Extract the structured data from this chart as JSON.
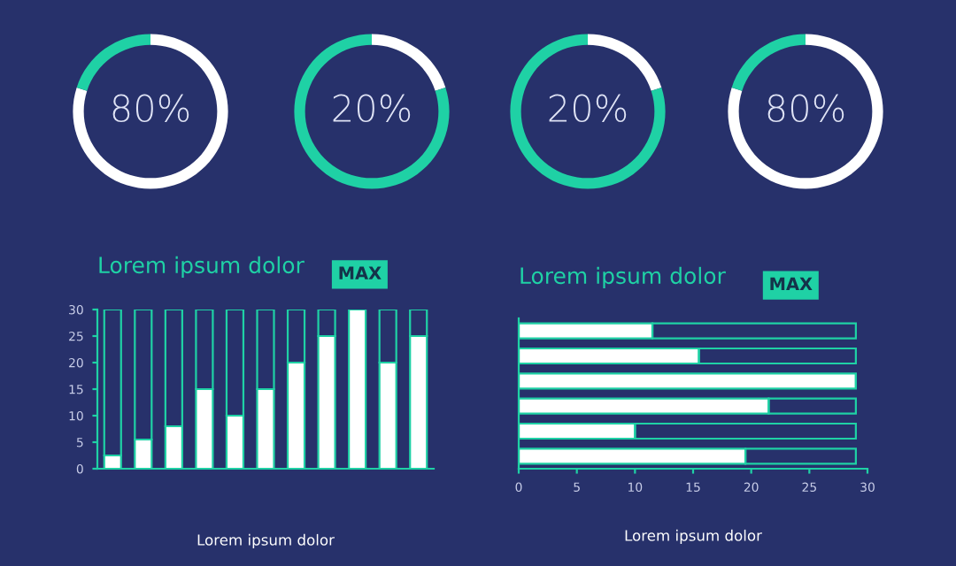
{
  "chart_data": [
    {
      "type": "donut",
      "categories": [
        null,
        null
      ],
      "values": [
        80,
        20
      ],
      "colors": [
        "#ffffff",
        "#1fd1a5"
      ],
      "annotations": [
        "80%"
      ]
    },
    {
      "type": "donut",
      "categories": [
        null,
        null
      ],
      "values": [
        20,
        80
      ],
      "colors": [
        "#ffffff",
        "#1fd1a5"
      ],
      "annotations": [
        "20%"
      ]
    },
    {
      "type": "donut",
      "categories": [
        null,
        null
      ],
      "values": [
        20,
        80
      ],
      "colors": [
        "#ffffff",
        "#1fd1a5"
      ],
      "annotations": [
        "20%"
      ]
    },
    {
      "type": "donut",
      "categories": [
        null,
        null
      ],
      "values": [
        80,
        20
      ],
      "colors": [
        "#ffffff",
        "#1fd1a5"
      ],
      "annotations": [
        "80%"
      ]
    },
    {
      "type": "bar",
      "title": "Lorem ipsum dolor",
      "categories": [
        null,
        null,
        null,
        null,
        null,
        null,
        null,
        null,
        null,
        null,
        null
      ],
      "stacked": true,
      "series": [
        {
          "color": "#ffffff",
          "values": [
            2.5,
            5.5,
            8,
            15,
            10,
            15,
            20,
            25,
            30,
            20,
            25
          ]
        },
        {
          "color": "#1fd1a5",
          "values": [
            27.5,
            24.5,
            22,
            15,
            20,
            15,
            10,
            5,
            0,
            10,
            5
          ]
        }
      ],
      "ylim": [
        0,
        30
      ],
      "yticks": [
        0,
        5,
        10,
        15,
        20,
        25,
        30
      ],
      "tick_labels": "y",
      "grid": false,
      "annotations": [
        "MAX",
        "Lorem ipsum dolor"
      ]
    },
    {
      "type": "bar",
      "orientation": "horizontal",
      "title": "Lorem ipsum dolor",
      "categories": [
        null,
        null,
        null,
        null,
        null,
        null
      ],
      "stacked": true,
      "series": [
        {
          "color": "#ffffff",
          "values": [
            11.5,
            15.5,
            29,
            21.5,
            10,
            19.5
          ]
        },
        {
          "color": "#1fd1a5",
          "values": [
            17.5,
            13.5,
            0,
            7.5,
            19,
            9.5
          ]
        }
      ],
      "xlim": [
        0,
        30
      ],
      "xticks": [
        0,
        5,
        10,
        15,
        20,
        25,
        30
      ],
      "tick_labels": "x",
      "grid": false,
      "annotations": [
        "MAX",
        "Lorem ipsum dolor"
      ]
    }
  ]
}
